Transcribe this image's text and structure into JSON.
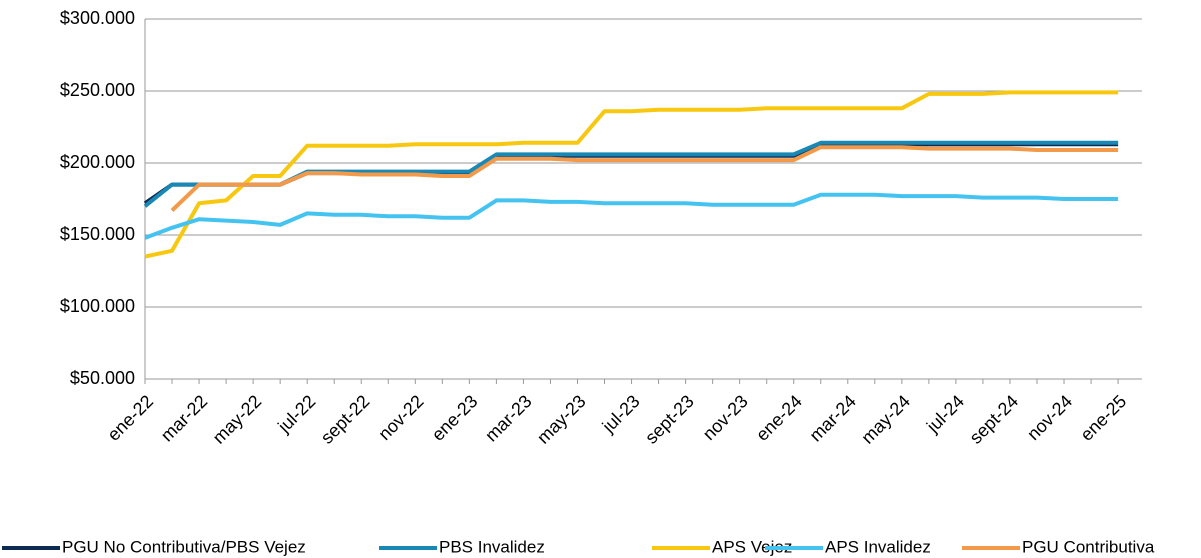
{
  "chart_data": {
    "type": "line",
    "categories": [
      "ene-22",
      null,
      "mar-22",
      null,
      "may-22",
      null,
      "jul-22",
      null,
      "sept-22",
      null,
      "nov-22",
      null,
      "ene-23",
      null,
      "mar-23",
      null,
      "may-23",
      null,
      "jul-23",
      null,
      "sept-23",
      null,
      "nov-23",
      null,
      "ene-24",
      null,
      "mar-24",
      null,
      "may-24",
      null,
      "jul-24",
      null,
      "sept-24",
      null,
      "nov-24",
      null,
      "ene-25"
    ],
    "series": [
      {
        "name": "PGU No Contributiva/PBS Vejez",
        "color": "#0d2b52",
        "values": [
          172000,
          185000,
          185000,
          185000,
          185000,
          185000,
          193000,
          193000,
          193000,
          193000,
          193000,
          193000,
          193000,
          205000,
          205000,
          205000,
          205000,
          205000,
          205000,
          205000,
          205000,
          205000,
          205000,
          205000,
          205000,
          213000,
          213000,
          213000,
          213000,
          213000,
          213000,
          213000,
          213000,
          213000,
          213000,
          213000,
          213000
        ]
      },
      {
        "name": "PBS Invalidez",
        "color": "#1a88b5",
        "values": [
          170000,
          185000,
          185000,
          185000,
          185000,
          185000,
          194000,
          194000,
          194000,
          194000,
          194000,
          194000,
          194000,
          206000,
          206000,
          206000,
          206000,
          206000,
          206000,
          206000,
          206000,
          206000,
          206000,
          206000,
          206000,
          214000,
          214000,
          214000,
          214000,
          214000,
          214000,
          214000,
          214000,
          214000,
          214000,
          214000,
          214000
        ]
      },
      {
        "name": "APS Vejez",
        "color": "#f7c80f",
        "values": [
          135000,
          139000,
          172000,
          174000,
          191000,
          191000,
          212000,
          212000,
          212000,
          212000,
          213000,
          213000,
          213000,
          213000,
          214000,
          214000,
          214000,
          236000,
          236000,
          237000,
          237000,
          237000,
          237000,
          238000,
          238000,
          238000,
          238000,
          238000,
          238000,
          248000,
          248000,
          248000,
          249000,
          249000,
          249000,
          249000,
          249000
        ]
      },
      {
        "name": "APS Invalidez",
        "color": "#45c3f0",
        "values": [
          148000,
          155000,
          161000,
          160000,
          159000,
          157000,
          165000,
          164000,
          164000,
          163000,
          163000,
          162000,
          162000,
          174000,
          174000,
          173000,
          173000,
          172000,
          172000,
          172000,
          172000,
          171000,
          171000,
          171000,
          171000,
          178000,
          178000,
          178000,
          177000,
          177000,
          177000,
          176000,
          176000,
          176000,
          175000,
          175000,
          175000
        ]
      },
      {
        "name": "PGU Contributiva",
        "color": "#f39a4a",
        "values": [
          null,
          167000,
          185000,
          185000,
          185000,
          185000,
          193000,
          193000,
          192000,
          192000,
          192000,
          191000,
          191000,
          203000,
          203000,
          203000,
          202000,
          202000,
          202000,
          202000,
          202000,
          202000,
          202000,
          202000,
          202000,
          211000,
          211000,
          211000,
          211000,
          210000,
          210000,
          210000,
          210000,
          209000,
          209000,
          209000,
          209000
        ]
      }
    ],
    "ylim": [
      50000,
      300000
    ],
    "yticks": [
      {
        "value": 50000,
        "label": "$50.000"
      },
      {
        "value": 100000,
        "label": "$100.000"
      },
      {
        "value": 150000,
        "label": "$150.000"
      },
      {
        "value": 200000,
        "label": "$200.000"
      },
      {
        "value": 250000,
        "label": "$250.000"
      },
      {
        "value": 300000,
        "label": "$300.000"
      }
    ],
    "grid": true,
    "legend": "bottom"
  }
}
